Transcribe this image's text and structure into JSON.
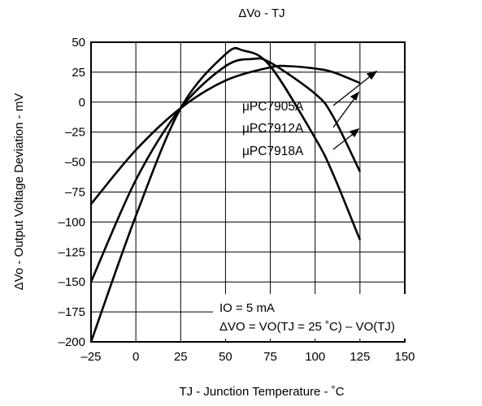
{
  "chart_data": {
    "type": "line",
    "title": "ΔVo - TJ",
    "xlabel": "TJ - Junction Temperature - ˚C",
    "ylabel": "ΔVo - Output Voltage Deviation - mV",
    "xlim": [
      -25,
      150
    ],
    "ylim": [
      -200,
      50
    ],
    "xticks": [
      "–25",
      "0",
      "25",
      "50",
      "75",
      "100",
      "125",
      "150"
    ],
    "yticks": [
      "50",
      "25",
      "0",
      "–25",
      "–50",
      "–75",
      "–100",
      "–125",
      "–150",
      "–175",
      "–200"
    ],
    "grid": true,
    "series": [
      {
        "name": "μPC7905A",
        "x": [
          -25,
          0,
          25,
          50,
          75,
          85,
          100,
          110,
          125
        ],
        "y": [
          -85,
          -40,
          -5,
          18,
          29,
          30,
          28,
          25,
          16
        ]
      },
      {
        "name": "μPC7912A",
        "x": [
          -25,
          0,
          25,
          50,
          65,
          75,
          100,
          110,
          125
        ],
        "y": [
          -150,
          -65,
          -5,
          30,
          36,
          33,
          7,
          -12,
          -58
        ]
      },
      {
        "name": "μPC7918A",
        "x": [
          -25,
          0,
          25,
          50,
          60,
          75,
          100,
          110,
          125
        ],
        "y": [
          -200,
          -95,
          -5,
          40,
          43,
          30,
          -30,
          -60,
          -115
        ]
      }
    ],
    "annotation": {
      "line1": "IO = 5 mA",
      "line2": "ΔVO = VO(TJ = 25 ˚C) – VO(TJ)"
    }
  }
}
